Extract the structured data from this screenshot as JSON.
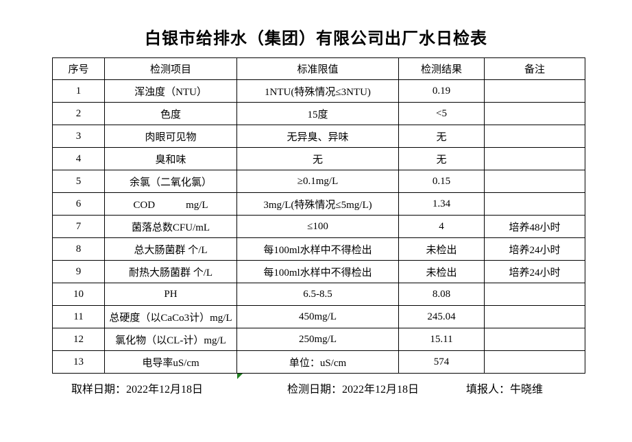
{
  "page_title": "白银市给排水（集团）有限公司出厂水日检表",
  "colors": {
    "border": "#000000",
    "marker_green": "#218021",
    "background": "#ffffff"
  },
  "table": {
    "headers": [
      "序号",
      "检测项目",
      "标准限值",
      "检测结果",
      "备注"
    ],
    "rows": [
      {
        "no": "1",
        "item": "浑浊度（NTU）",
        "standard": "1NTU(特殊情况≤3NTU)",
        "result": "0.19",
        "remark": ""
      },
      {
        "no": "2",
        "item": "色度",
        "standard": "15度",
        "result": "<5",
        "remark": ""
      },
      {
        "no": "3",
        "item": "肉眼可见物",
        "standard": "无异臭、异味",
        "result": "无",
        "remark": ""
      },
      {
        "no": "4",
        "item": "臭和味",
        "standard": "无",
        "result": "无",
        "remark": ""
      },
      {
        "no": "5",
        "item": "余氯（二氧化氯）",
        "standard": "≥0.1mg/L",
        "result": "0.15",
        "remark": ""
      },
      {
        "no": "6",
        "item": "COD　　　mg/L",
        "standard": "3mg/L(特殊情况≤5mg/L)",
        "result": "1.34",
        "remark": ""
      },
      {
        "no": "7",
        "item": "菌落总数CFU/mL",
        "standard": "≤100",
        "result": "4",
        "remark": "培养48小时"
      },
      {
        "no": "8",
        "item": "总大肠菌群 个/L",
        "standard": "每100ml水样中不得检出",
        "result": "未检出",
        "remark": "培养24小时"
      },
      {
        "no": "9",
        "item": "耐热大肠菌群 个/L",
        "standard": "每100ml水样中不得检出",
        "result": "未检出",
        "remark": "培养24小时"
      },
      {
        "no": "10",
        "item": "PH",
        "standard": "6.5-8.5",
        "result": "8.08",
        "remark": ""
      },
      {
        "no": "11",
        "item": "总硬度（以CaCo3计）mg/L",
        "standard": "450mg/L",
        "result": "245.04",
        "remark": ""
      },
      {
        "no": "12",
        "item": "氯化物（以CL-计）mg/L",
        "standard": "250mg/L",
        "result": "15.11",
        "remark": ""
      },
      {
        "no": "13",
        "item": "电导率uS/cm",
        "standard": "单位：uS/cm",
        "result": "574",
        "remark": ""
      }
    ]
  },
  "footer": {
    "sampling_date": "取样日期：2022年12月18日",
    "test_date": "检测日期：2022年12月18日",
    "reporter": "填报人：牛晓维"
  }
}
